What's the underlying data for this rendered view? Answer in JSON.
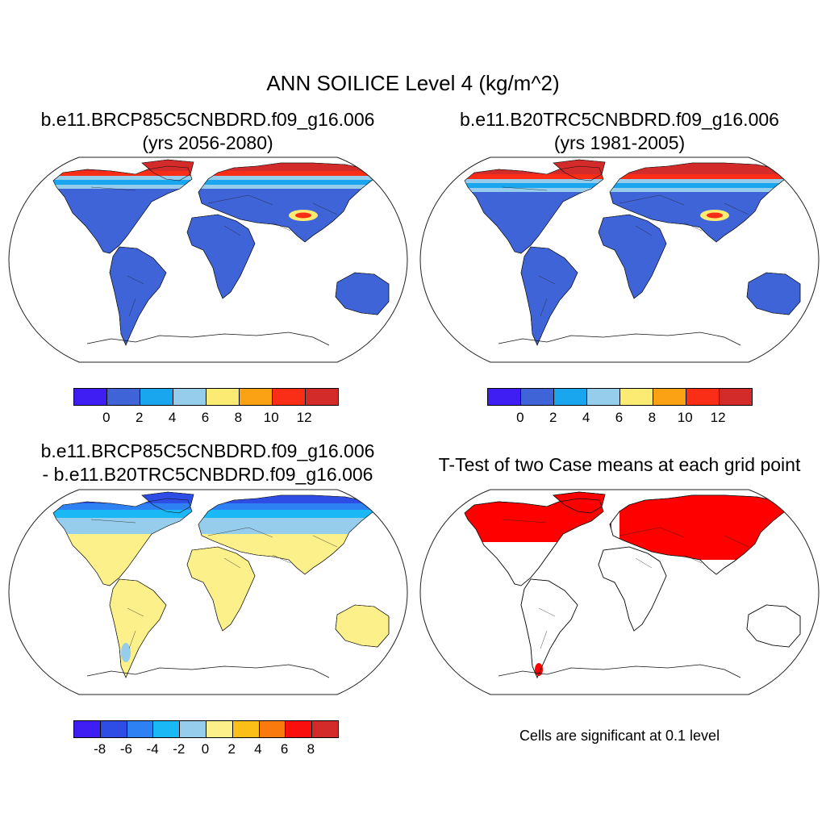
{
  "title": "ANN SOILICE Level 4 (kg/m^2)",
  "panels": [
    {
      "id": "p1",
      "line1": "b.e11.BRCP85C5CNBDRD.f09_g16.006",
      "line2": "(yrs 2056-2080)"
    },
    {
      "id": "p2",
      "line1": "b.e11.B20TRC5CNBDRD.f09_g16.006",
      "line2": "(yrs 1981-2005)"
    },
    {
      "id": "p3",
      "line1": "b.e11.BRCP85C5CNBDRD.f09_g16.006",
      "line2": "- b.e11.B20TRC5CNBDRD.f09_g16.006"
    },
    {
      "id": "p4",
      "line1": "T-Test of two Case means at each grid point"
    }
  ],
  "colorbars": {
    "case": {
      "colors": [
        "#3e1ef2",
        "#3e64d8",
        "#1aa6ef",
        "#96cdec",
        "#fbeb72",
        "#fba114",
        "#fa2e16",
        "#d32a2a"
      ],
      "ticks": [
        "0",
        "2",
        "4",
        "6",
        "8",
        "10",
        "12"
      ]
    },
    "diff": {
      "colors": [
        "#3e1ef2",
        "#2d4de4",
        "#2e81f2",
        "#1ab9f5",
        "#96cdec",
        "#fbf08a",
        "#fcbf18",
        "#fb7a0d",
        "#fa0f0f",
        "#d32a2a"
      ],
      "ticks": [
        "-8",
        "-6",
        "-4",
        "-2",
        "0",
        "2",
        "4",
        "6",
        "8"
      ]
    }
  },
  "ttest_color": "#ff0000",
  "significance_note": "Cells are significant at 0.1 level"
}
